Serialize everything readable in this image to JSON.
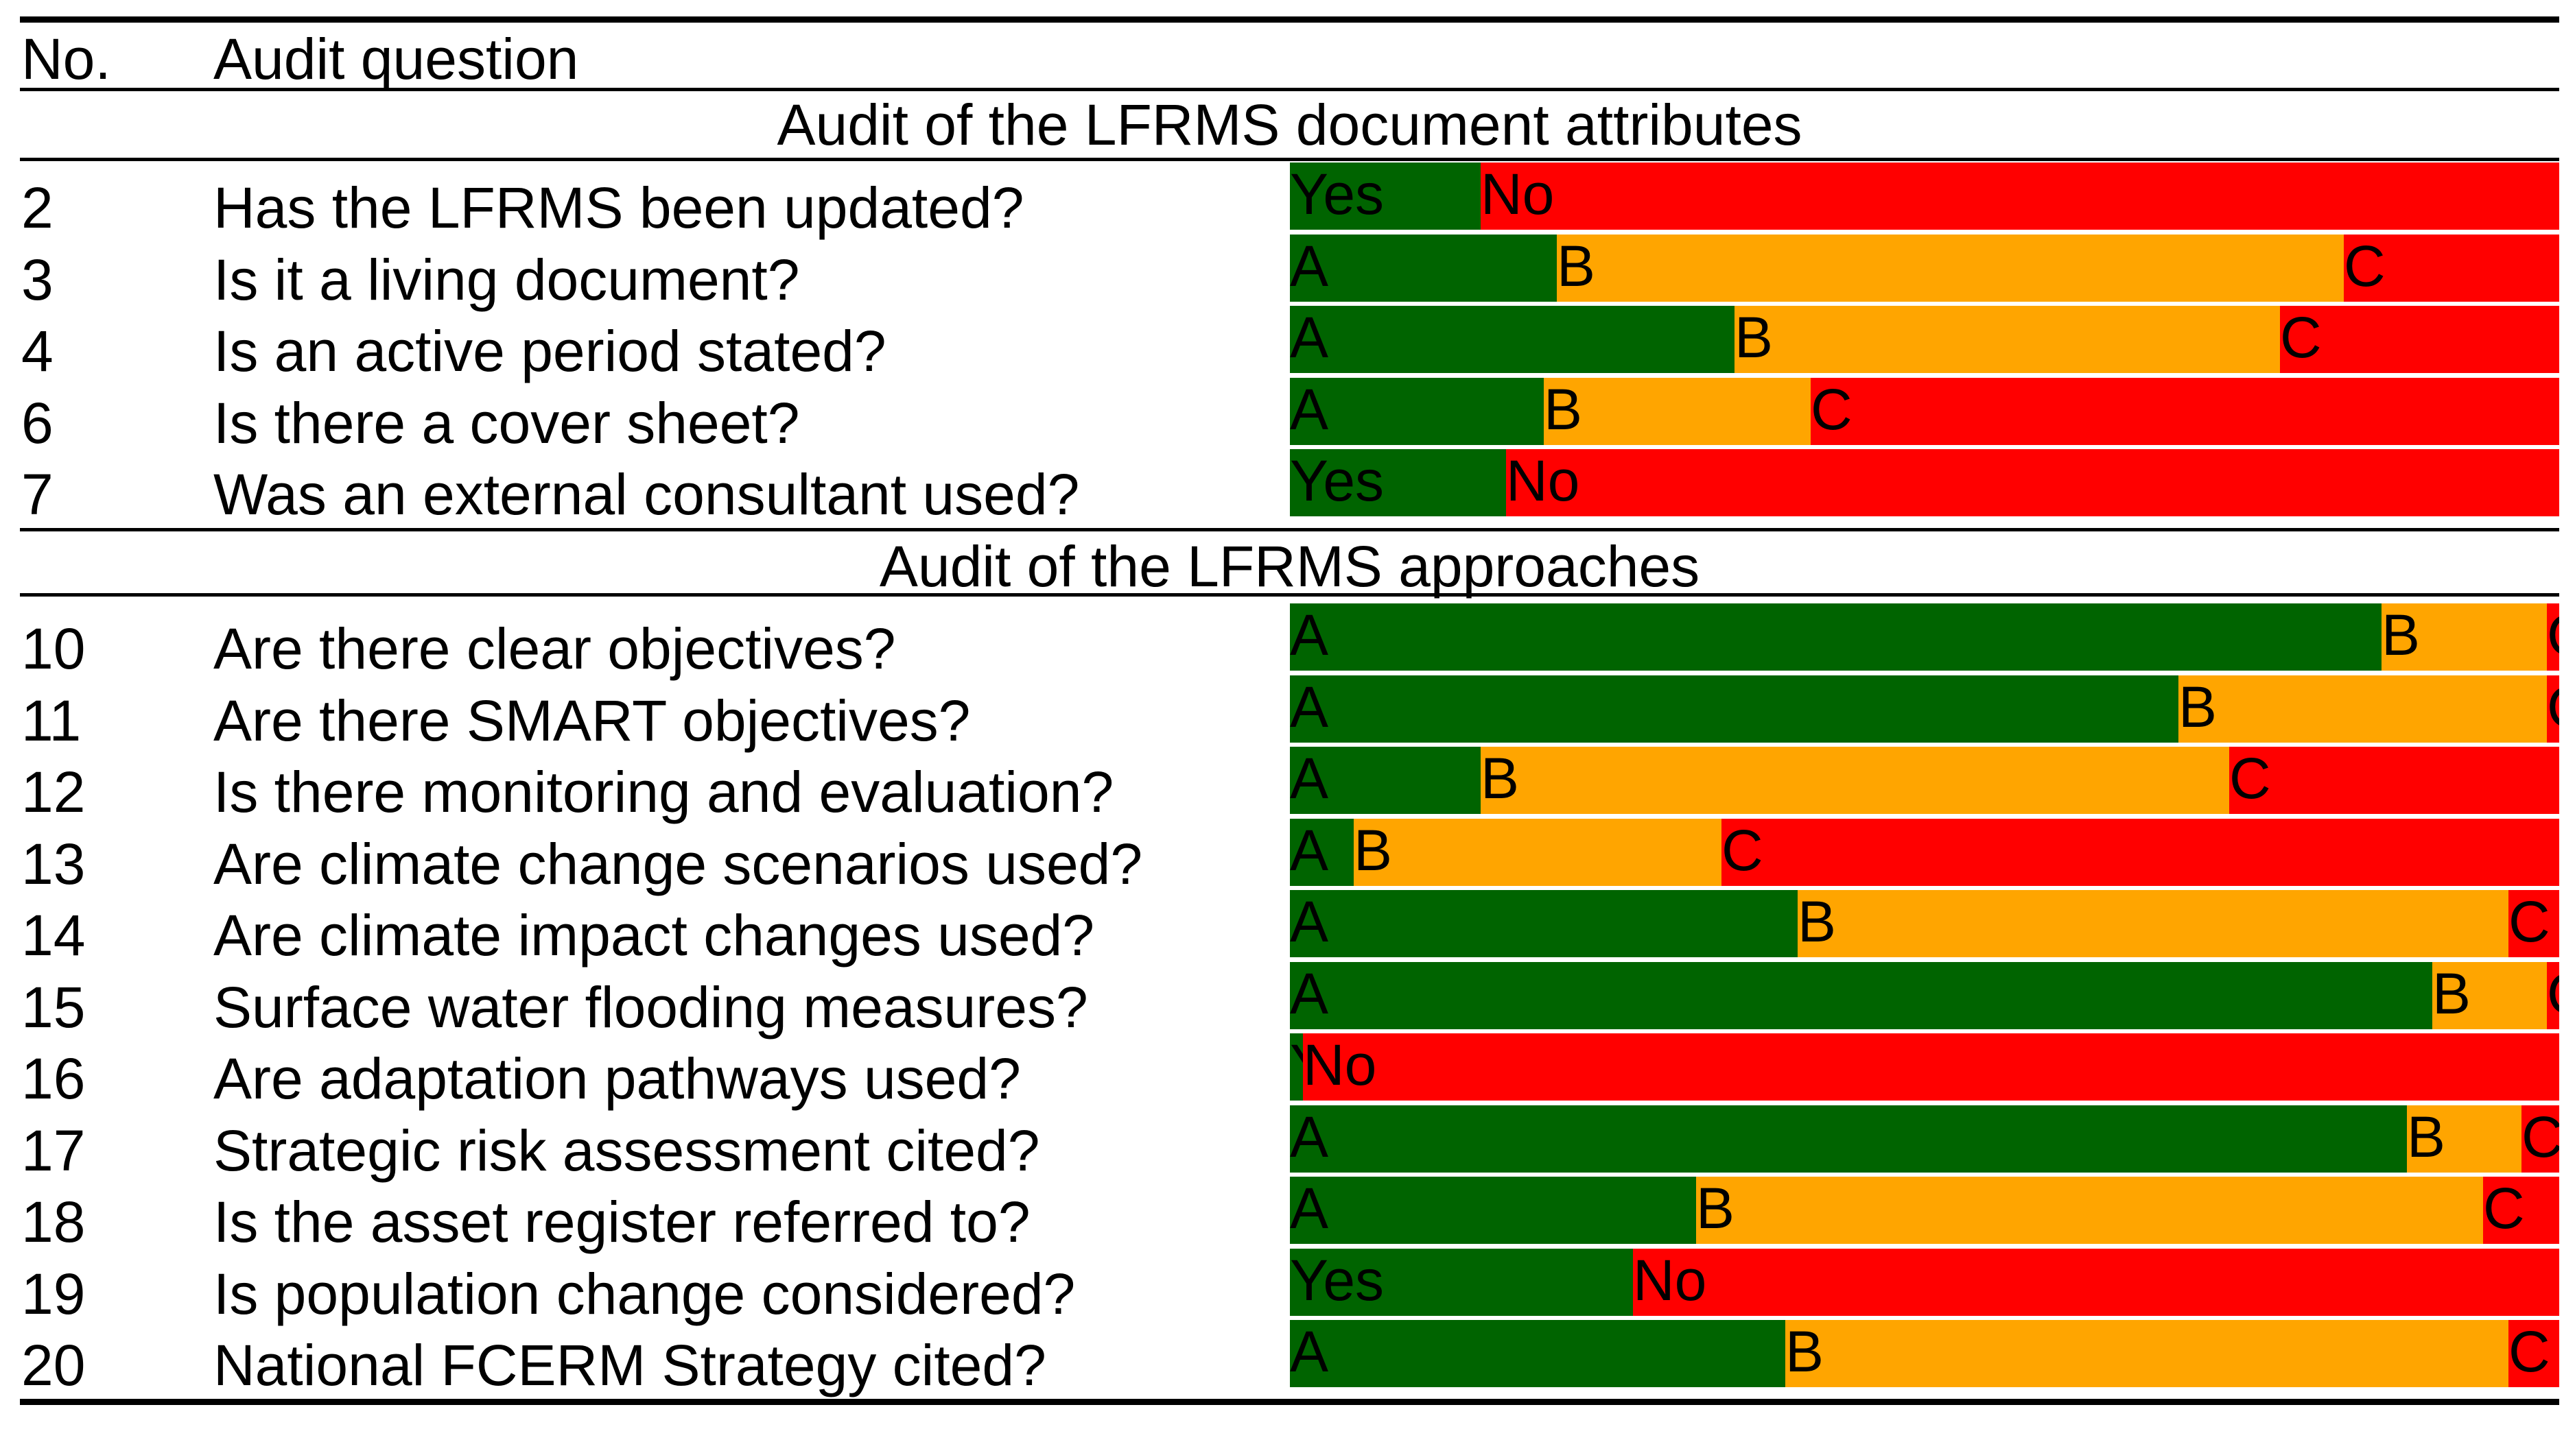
{
  "header": {
    "no_label": "No.",
    "question_label": "Audit question"
  },
  "colors": {
    "A": "#006400",
    "B": "#FFA500",
    "C": "#FF0000",
    "Yes": "#006400",
    "No": "#FF0000",
    "label_A": "#000000",
    "label_B": "#000000",
    "label_C": "#000000",
    "label_Yes": "#000000",
    "label_No": "#000000"
  },
  "chart_data": {
    "type": "bar",
    "stacked": true,
    "orientation": "horizontal",
    "scale": "proportion",
    "xlim": [
      0,
      1
    ],
    "sections": [
      {
        "title": "Audit of the LFRMS document attributes",
        "rows": [
          {
            "no": "2",
            "question": "Has the LFRMS been updated?",
            "segments": [
              {
                "label": "Yes",
                "value": 0.15
              },
              {
                "label": "No",
                "value": 0.85
              }
            ]
          },
          {
            "no": "3",
            "question": "Is it a living document?",
            "segments": [
              {
                "label": "A",
                "value": 0.21
              },
              {
                "label": "B",
                "value": 0.62
              },
              {
                "label": "C",
                "value": 0.17
              }
            ]
          },
          {
            "no": "4",
            "question": "Is an active period stated?",
            "segments": [
              {
                "label": "A",
                "value": 0.35
              },
              {
                "label": "B",
                "value": 0.43
              },
              {
                "label": "C",
                "value": 0.22
              }
            ]
          },
          {
            "no": "6",
            "question": "Is there a cover sheet?",
            "segments": [
              {
                "label": "A",
                "value": 0.2
              },
              {
                "label": "B",
                "value": 0.21
              },
              {
                "label": "C",
                "value": 0.59
              }
            ]
          },
          {
            "no": "7",
            "question": "Was an external consultant used?",
            "segments": [
              {
                "label": "Yes",
                "value": 0.17
              },
              {
                "label": "No",
                "value": 0.83
              }
            ]
          }
        ]
      },
      {
        "title": "Audit of the LFRMS approaches",
        "rows": [
          {
            "no": "10",
            "question": "Are there clear objectives?",
            "segments": [
              {
                "label": "A",
                "value": 0.86
              },
              {
                "label": "B",
                "value": 0.13
              },
              {
                "label": "C",
                "value": 0.01
              }
            ]
          },
          {
            "no": "11",
            "question": "Are there SMART objectives?",
            "segments": [
              {
                "label": "A",
                "value": 0.7
              },
              {
                "label": "B",
                "value": 0.29
              },
              {
                "label": "C",
                "value": 0.01
              }
            ]
          },
          {
            "no": "12",
            "question": "Is there monitoring and evaluation?",
            "segments": [
              {
                "label": "A",
                "value": 0.15
              },
              {
                "label": "B",
                "value": 0.59
              },
              {
                "label": "C",
                "value": 0.26
              }
            ]
          },
          {
            "no": "13",
            "question": "Are climate change scenarios used?",
            "segments": [
              {
                "label": "A",
                "value": 0.05
              },
              {
                "label": "B",
                "value": 0.29
              },
              {
                "label": "C",
                "value": 0.66
              }
            ]
          },
          {
            "no": "14",
            "question": "Are climate impact changes used?",
            "segments": [
              {
                "label": "A",
                "value": 0.4
              },
              {
                "label": "B",
                "value": 0.56
              },
              {
                "label": "C",
                "value": 0.04
              }
            ]
          },
          {
            "no": "15",
            "question": "Surface water flooding measures?",
            "segments": [
              {
                "label": "A",
                "value": 0.9
              },
              {
                "label": "B",
                "value": 0.09
              },
              {
                "label": "C",
                "value": 0.01
              }
            ]
          },
          {
            "no": "16",
            "question": "Are adaptation pathways used?",
            "segments": [
              {
                "label": "Yes",
                "value": 0.01
              },
              {
                "label": "No",
                "value": 0.99
              }
            ]
          },
          {
            "no": "17",
            "question": "Strategic risk assessment cited?",
            "segments": [
              {
                "label": "A",
                "value": 0.88
              },
              {
                "label": "B",
                "value": 0.09
              },
              {
                "label": "C",
                "value": 0.03
              }
            ]
          },
          {
            "no": "18",
            "question": "Is the asset register referred to?",
            "segments": [
              {
                "label": "A",
                "value": 0.32
              },
              {
                "label": "B",
                "value": 0.62
              },
              {
                "label": "C",
                "value": 0.06
              }
            ]
          },
          {
            "no": "19",
            "question": "Is population change considered?",
            "segments": [
              {
                "label": "Yes",
                "value": 0.27
              },
              {
                "label": "No",
                "value": 0.73
              }
            ]
          },
          {
            "no": "20",
            "question": "National FCERM Strategy cited?",
            "segments": [
              {
                "label": "A",
                "value": 0.39
              },
              {
                "label": "B",
                "value": 0.57
              },
              {
                "label": "C",
                "value": 0.04
              }
            ]
          }
        ]
      }
    ]
  }
}
